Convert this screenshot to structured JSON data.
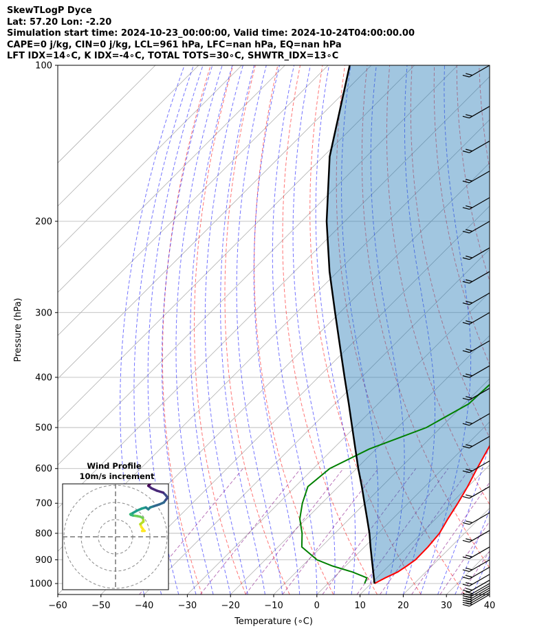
{
  "header": {
    "line1": "SkewTLogP Dyce",
    "line2": "Lat: 57.20   Lon: -2.20",
    "line3": "Simulation start time: 2024-10-23_00:00:00, Valid time: 2024-10-24T04:00:00.00",
    "line4": "CAPE=0 j/kg, CIN=0 j/kg, LCL=961 hPa, LFC=nan hPa, EQ=nan hPa",
    "line5": "LFT IDX=14∘C, K IDX=-4∘C, TOTAL TOTS=30∘C, SHWTR_IDX=13∘C"
  },
  "chart_data": {
    "type": "line",
    "title": "SkewTLogP Dyce",
    "xlabel": "Temperature (∘C)",
    "ylabel": "Pressure (hPa)",
    "xlim": [
      -60,
      40
    ],
    "ylim": [
      1050,
      100
    ],
    "x_ticks": [
      "−60",
      "−50",
      "−40",
      "−30",
      "−20",
      "−10",
      "0",
      "10",
      "20",
      "30",
      "40"
    ],
    "y_ticks": [
      100,
      200,
      300,
      400,
      500,
      600,
      700,
      800,
      900,
      1000
    ],
    "y_scale": "log",
    "skew": "45 degrees",
    "grid": true,
    "series": [
      {
        "name": "temperature",
        "color": "#ff0000",
        "points": [
          [
            1000,
            10.8
          ],
          [
            975,
            12.0
          ],
          [
            950,
            13.5
          ],
          [
            925,
            14.2
          ],
          [
            900,
            14.8
          ],
          [
            850,
            14.7
          ],
          [
            800,
            14.2
          ],
          [
            750,
            12.8
          ],
          [
            700,
            11.5
          ],
          [
            650,
            9.9
          ],
          [
            600,
            7.9
          ],
          [
            550,
            5.9
          ],
          [
            500,
            3.6
          ],
          [
            450,
            1.2
          ],
          [
            400,
            -2.5
          ],
          [
            350,
            -6.2
          ],
          [
            300,
            -11.0
          ],
          [
            250,
            -17.2
          ],
          [
            220,
            -21.6
          ],
          [
            200,
            -24.4
          ],
          [
            190,
            -22.9
          ],
          [
            180,
            -21.0
          ],
          [
            170,
            -21.5
          ],
          [
            160,
            -22.5
          ],
          [
            150,
            -25.0
          ],
          [
            140,
            -28.7
          ],
          [
            130,
            -32.4
          ],
          [
            120,
            -37.4
          ],
          [
            110,
            -43.9
          ],
          [
            100,
            -50.7
          ]
        ]
      },
      {
        "name": "dewpoint",
        "color": "#008000",
        "points": [
          [
            1000,
            8.5
          ],
          [
            975,
            7.7
          ],
          [
            950,
            3.0
          ],
          [
            925,
            -3.0
          ],
          [
            900,
            -8.0
          ],
          [
            850,
            -14.5
          ],
          [
            800,
            -17.6
          ],
          [
            750,
            -21.5
          ],
          [
            700,
            -24.5
          ],
          [
            650,
            -27.1
          ],
          [
            600,
            -26.2
          ],
          [
            550,
            -21.6
          ],
          [
            500,
            -13.3
          ],
          [
            450,
            -9.0
          ],
          [
            400,
            -8.5
          ],
          [
            350,
            -11.0
          ],
          [
            300,
            -18.2
          ],
          [
            280,
            -25.8
          ],
          [
            260,
            -28.0
          ],
          [
            240,
            -32.2
          ],
          [
            220,
            -36.7
          ],
          [
            200,
            -38.5
          ],
          [
            180,
            -37.5
          ],
          [
            160,
            -42.9
          ],
          [
            150,
            -48.8
          ],
          [
            140,
            -53.6
          ],
          [
            130,
            -56.9
          ],
          [
            120,
            -59.8
          ],
          [
            110,
            -61.6
          ],
          [
            100,
            -64.7
          ]
        ]
      },
      {
        "name": "parcel",
        "color": "#000000",
        "points": [
          [
            1000,
            10.8
          ],
          [
            961,
            8.5
          ],
          [
            900,
            4.7
          ],
          [
            850,
            1.4
          ],
          [
            800,
            -2.0
          ],
          [
            750,
            -5.9
          ],
          [
            700,
            -10.1
          ],
          [
            650,
            -14.6
          ],
          [
            600,
            -19.6
          ],
          [
            550,
            -24.8
          ],
          [
            500,
            -30.5
          ],
          [
            450,
            -36.8
          ],
          [
            400,
            -43.9
          ],
          [
            350,
            -51.9
          ],
          [
            300,
            -61.1
          ],
          [
            250,
            -71.9
          ],
          [
            200,
            -84.2
          ],
          [
            150,
            -98.5
          ],
          [
            100,
            -115.0
          ]
        ]
      }
    ],
    "shaded_region": "CAPE/CIN area between temperature and parcel",
    "wind_barbs_at_x": 40
  },
  "hodograph": {
    "title": "Wind Profile",
    "subtitle": "10m/s increment",
    "trace": [
      [
        -0.3,
        -1.5
      ],
      [
        -0.7,
        -1.5
      ],
      [
        -0.5,
        -1.3
      ],
      [
        -0.8,
        -0.9
      ],
      [
        -1.0,
        -0.4
      ],
      [
        -0.5,
        0.0
      ],
      [
        -0.5,
        0.2
      ],
      [
        -0.6,
        0.6
      ],
      [
        -1.0,
        0.8
      ],
      [
        -1.5,
        0.9
      ],
      [
        -2.2,
        1.0
      ],
      [
        -2.5,
        1.1
      ],
      [
        -2.6,
        1.2
      ],
      [
        -2.2,
        1.4
      ],
      [
        -1.5,
        1.8
      ],
      [
        -0.8,
        2.1
      ],
      [
        -0.1,
        2.3
      ],
      [
        0.3,
        2.0
      ],
      [
        0.6,
        2.3
      ],
      [
        1.2,
        2.5
      ],
      [
        2.1,
        2.8
      ],
      [
        2.8,
        3.1
      ],
      [
        3.1,
        3.5
      ],
      [
        3.4,
        3.9
      ],
      [
        3.1,
        4.3
      ],
      [
        2.7,
        4.7
      ],
      [
        1.7,
        5.0
      ],
      [
        0.8,
        5.4
      ],
      [
        0.3,
        5.8
      ],
      [
        0.7,
        6.2
      ],
      [
        1.5,
        6.6
      ],
      [
        2.2,
        7.0
      ]
    ]
  }
}
